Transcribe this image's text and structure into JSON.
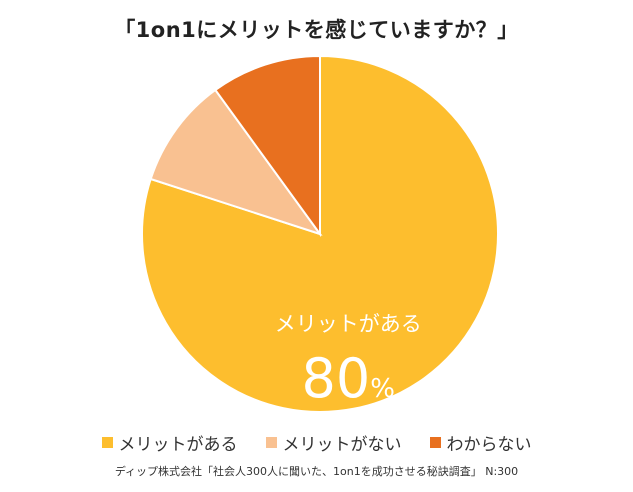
{
  "chart_data": {
    "type": "pie",
    "title": "「1on1にメリットを感じていますか？」",
    "categories": [
      "メリットがある",
      "メリットがない",
      "わからない"
    ],
    "values": [
      80,
      10,
      10
    ],
    "colors": [
      "#FDBE2E",
      "#F9C191",
      "#E8701F"
    ],
    "data_labels": [
      {
        "category": "メリットがある",
        "label": "メリットがある",
        "value": "80",
        "unit": "%"
      }
    ],
    "legend_position": "bottom"
  },
  "footer": {
    "source": "ディップ株式会社「社会人300人に聞いた、1on1を成功させる秘訣調査」 N:300"
  }
}
